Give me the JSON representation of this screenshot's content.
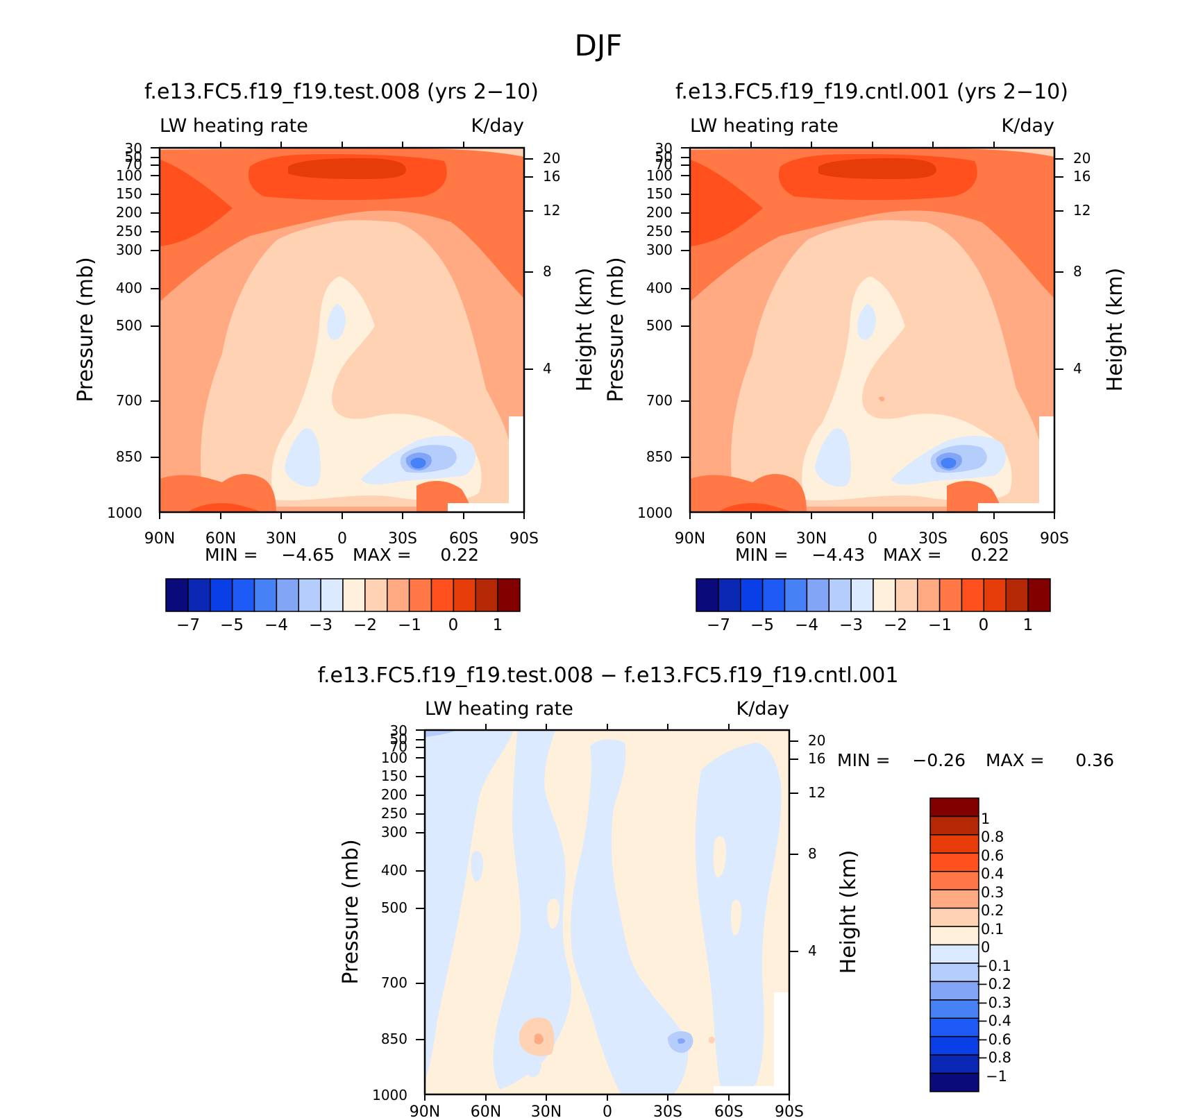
{
  "figure": {
    "title": "DJF",
    "stats_label_min": "MIN =",
    "stats_label_max": "MAX ="
  },
  "chart_data": [
    {
      "type": "heatmap",
      "title": "f.e13.FC5.f19_f19.test.008 (yrs 2−10)",
      "left_label": "LW heating rate",
      "right_label": "K/day",
      "ylabel": "Pressure (mb)",
      "ylabel_right": "Height (km)",
      "x_ticks": [
        "90N",
        "60N",
        "30N",
        "0",
        "30S",
        "60S",
        "90S"
      ],
      "y_ticks": [
        "30",
        "50",
        "70",
        "100",
        "150",
        "200",
        "250",
        "300",
        "400",
        "500",
        "700",
        "850",
        "1000"
      ],
      "y_right_ticks": [
        "20",
        "16",
        "12",
        "8",
        "4"
      ],
      "min_value": "−4.65",
      "max_value": "0.22",
      "colorbar_labels": [
        "−7",
        "−5",
        "−4",
        "−3",
        "−2",
        "−1",
        "0",
        "1"
      ],
      "colorbar_colors": [
        "#0a0a7a",
        "#0a28b4",
        "#0a3ee6",
        "#1e5af5",
        "#4682f5",
        "#82a5f5",
        "#b4cdfa",
        "#dceaff",
        "#fff0dc",
        "#ffd2b4",
        "#ffaa82",
        "#ff7846",
        "#ff501e",
        "#e63c0a",
        "#b42805",
        "#820000"
      ]
    },
    {
      "type": "heatmap",
      "title": "f.e13.FC5.f19_f19.cntl.001 (yrs 2−10)",
      "left_label": "LW heating rate",
      "right_label": "K/day",
      "ylabel": "Pressure (mb)",
      "ylabel_right": "Height (km)",
      "x_ticks": [
        "90N",
        "60N",
        "30N",
        "0",
        "30S",
        "60S",
        "90S"
      ],
      "y_ticks": [
        "30",
        "50",
        "70",
        "100",
        "150",
        "200",
        "250",
        "300",
        "400",
        "500",
        "700",
        "850",
        "1000"
      ],
      "y_right_ticks": [
        "20",
        "16",
        "12",
        "8",
        "4"
      ],
      "min_value": "−4.43",
      "max_value": "0.22",
      "colorbar_labels": [
        "−7",
        "−5",
        "−4",
        "−3",
        "−2",
        "−1",
        "0",
        "1"
      ],
      "colorbar_colors": [
        "#0a0a7a",
        "#0a28b4",
        "#0a3ee6",
        "#1e5af5",
        "#4682f5",
        "#82a5f5",
        "#b4cdfa",
        "#dceaff",
        "#fff0dc",
        "#ffd2b4",
        "#ffaa82",
        "#ff7846",
        "#ff501e",
        "#e63c0a",
        "#b42805",
        "#820000"
      ]
    },
    {
      "type": "heatmap",
      "title": "f.e13.FC5.f19_f19.test.008 − f.e13.FC5.f19_f19.cntl.001",
      "left_label": "LW heating rate",
      "right_label": "K/day",
      "ylabel": "Pressure (mb)",
      "ylabel_right": "Height (km)",
      "x_ticks": [
        "90N",
        "60N",
        "30N",
        "0",
        "30S",
        "60S",
        "90S"
      ],
      "y_ticks": [
        "30",
        "50",
        "70",
        "100",
        "150",
        "200",
        "250",
        "300",
        "400",
        "500",
        "700",
        "850",
        "1000"
      ],
      "y_right_ticks": [
        "20",
        "16",
        "12",
        "8",
        "4"
      ],
      "min_value": "−0.26",
      "max_value": "0.36",
      "colorbar_labels": [
        "1",
        "0.8",
        "0.6",
        "0.4",
        "0.3",
        "0.2",
        "0.1",
        "0",
        "−0.1",
        "−0.2",
        "−0.3",
        "−0.4",
        "−0.6",
        "−0.8",
        "−1"
      ],
      "colorbar_colors": [
        "#820000",
        "#b42805",
        "#e63c0a",
        "#ff501e",
        "#ff7846",
        "#ffaa82",
        "#ffd2b4",
        "#fff0dc",
        "#dceaff",
        "#b4cdfa",
        "#82a5f5",
        "#4682f5",
        "#1e5af5",
        "#0a3ee6",
        "#0a28b4",
        "#0a0a7a"
      ]
    }
  ]
}
